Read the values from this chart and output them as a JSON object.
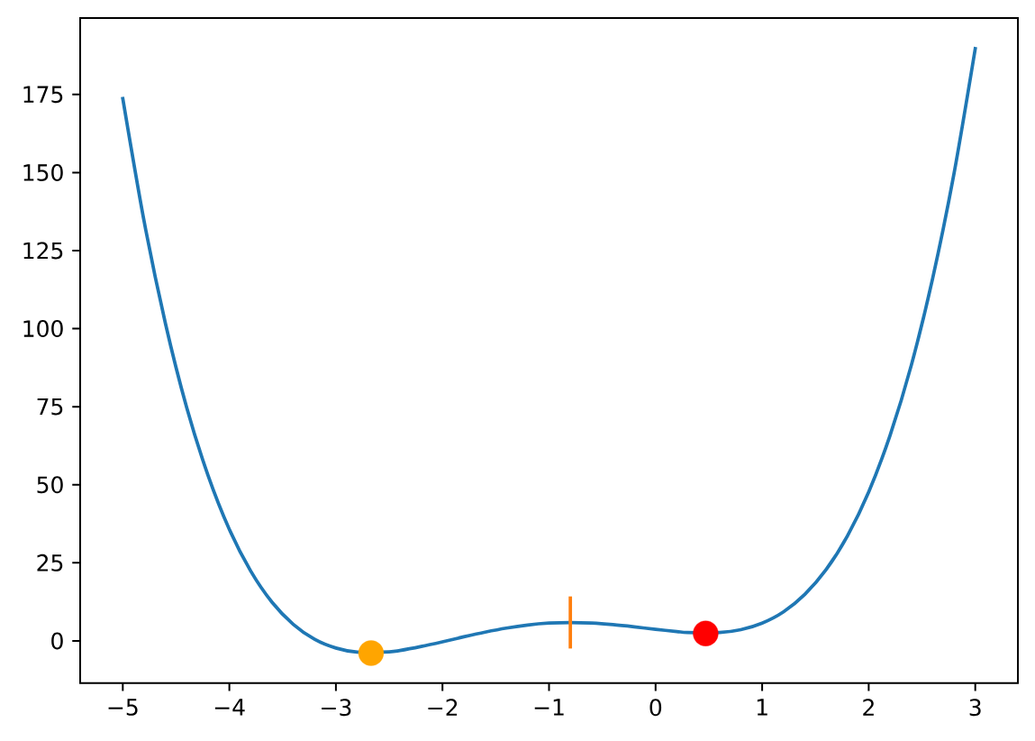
{
  "chart_data": {
    "type": "line",
    "x": [
      -5,
      -4.8,
      -4.6,
      -4.4,
      -4.2,
      -4,
      -3.8,
      -3.6,
      -3.4,
      -3.2,
      -3,
      -2.8,
      -2.5,
      -2.4,
      -2.2,
      -2,
      -1.8,
      -1.6,
      -1.4,
      -1.2,
      -1,
      -0.8,
      -0.6,
      -0.4,
      -0.2,
      0,
      0.2,
      0.3,
      0.6,
      0.8,
      1,
      1.2,
      1.4,
      1.6,
      1.8,
      2,
      2.2,
      2.4,
      2.6,
      2.8,
      3
    ],
    "xlim": [
      -5.4,
      3.4
    ],
    "ylim": [
      -13.5,
      199.5
    ],
    "xticks": [
      {
        "value": -5,
        "label": "−5"
      },
      {
        "value": -4,
        "label": "−4"
      },
      {
        "value": -3,
        "label": "−3"
      },
      {
        "value": -2,
        "label": "−2"
      },
      {
        "value": -1,
        "label": "−1"
      },
      0,
      1,
      2,
      3
    ],
    "yticks": [
      0,
      25,
      50,
      75,
      100,
      125,
      150,
      175
    ],
    "series": [
      {
        "color": "#1f77b4",
        "values": [
          173.7,
          134.4,
          101.7,
          74.7,
          53.0,
          35.7,
          22.4,
          12.4,
          5.3,
          0.5,
          -2.3,
          -3.6,
          -3.5,
          -3.1,
          -1.8,
          -0.3,
          1.3,
          2.8,
          4.1,
          5.1,
          5.7,
          5.9,
          5.7,
          5.2,
          4.5,
          3.7,
          3.0,
          2.7,
          2.7,
          3.6,
          5.7,
          9.3,
          14.9,
          22.8,
          33.6,
          47.7,
          65.8,
          88.3,
          116.1,
          149.6,
          189.7
        ]
      },
      {
        "type": "scatter",
        "x": [
          -2.67
        ],
        "values": [
          -3.9
        ],
        "color": "#ffa500",
        "marker": "circle"
      },
      {
        "type": "scatter",
        "x": [
          0.47
        ],
        "values": [
          2.4
        ],
        "color": "#ff0000",
        "marker": "circle"
      },
      {
        "type": "line",
        "x": [
          -0.8,
          -0.8
        ],
        "values": [
          -1.9,
          13.7
        ],
        "color": "#ff7f0e"
      }
    ]
  }
}
